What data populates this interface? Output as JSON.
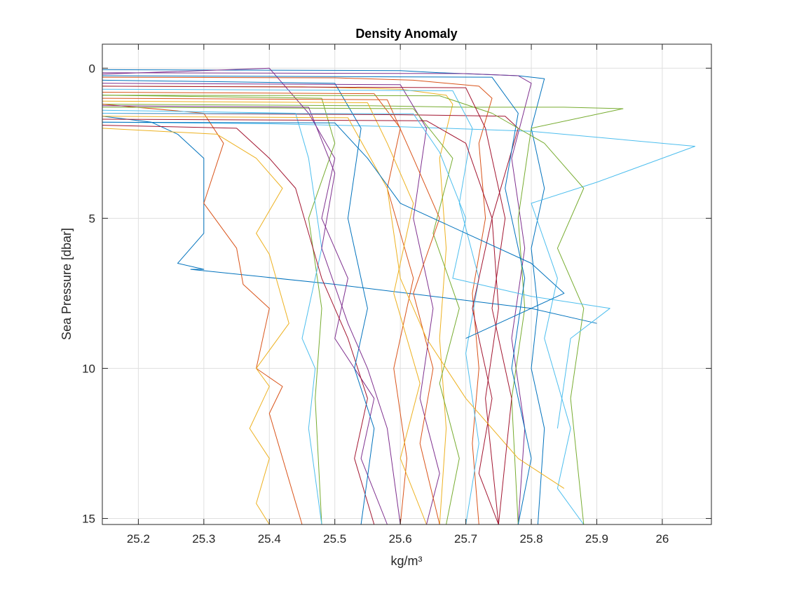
{
  "chart_data": {
    "type": "line",
    "title": "Density Anomaly",
    "xlabel": "kg/m³",
    "ylabel": "Sea Pressure [dbar]",
    "xlim": [
      25.145,
      26.075
    ],
    "ylim": [
      15.2,
      -0.8
    ],
    "y_reversed": true,
    "grid": true,
    "legend": "none",
    "xticks": [
      25.2,
      25.3,
      25.4,
      25.5,
      25.6,
      25.7,
      25.8,
      25.9,
      26.0
    ],
    "xtick_labels": [
      "25.2",
      "25.3",
      "25.4",
      "25.5",
      "25.6",
      "25.7",
      "25.8",
      "25.9",
      "26"
    ],
    "yticks": [
      0,
      5,
      10,
      15
    ],
    "ytick_labels": [
      "0",
      "5",
      "10",
      "15"
    ],
    "colors": [
      "#0072BD",
      "#D95319",
      "#EDB120",
      "#7E2F8E",
      "#77AC30",
      "#4DBEEE",
      "#A2142F"
    ],
    "series": [
      {
        "x": [
          25.14,
          25.6,
          25.66,
          25.78,
          25.82,
          25.8,
          25.82,
          25.8,
          25.81,
          25.8,
          25.82,
          25.81
        ],
        "y": [
          0.05,
          0.08,
          0.15,
          0.25,
          0.35,
          2.0,
          4.0,
          6.0,
          8.0,
          10.0,
          12.0,
          15.2
        ]
      },
      {
        "x": [
          25.14,
          25.5,
          25.62,
          25.72,
          25.74,
          25.72,
          25.73,
          25.71,
          25.72,
          25.71,
          25.72
        ],
        "y": [
          0.3,
          0.32,
          0.4,
          0.6,
          1.0,
          2.5,
          5.0,
          7.5,
          10.0,
          12.5,
          15.2
        ]
      },
      {
        "x": [
          25.14,
          25.45,
          25.6,
          25.67,
          25.68,
          25.66,
          25.67,
          25.66,
          25.67,
          25.66
        ],
        "y": [
          0.6,
          0.62,
          0.7,
          0.9,
          1.2,
          3.0,
          6.0,
          9.0,
          12.0,
          15.2
        ]
      },
      {
        "x": [
          25.14,
          25.7,
          25.78,
          25.8,
          25.77,
          25.79,
          25.77,
          25.79,
          25.78
        ],
        "y": [
          0.15,
          0.18,
          0.25,
          0.5,
          3.0,
          6.0,
          9.0,
          12.0,
          15.2
        ]
      },
      {
        "x": [
          25.14,
          25.55,
          25.7,
          25.85,
          25.94,
          25.8,
          25.78,
          25.79,
          25.77,
          25.78
        ],
        "y": [
          1.2,
          1.25,
          1.3,
          1.3,
          1.35,
          2.0,
          5.0,
          8.0,
          11.0,
          15.2
        ]
      },
      {
        "x": [
          25.14,
          25.4,
          25.6,
          25.8,
          26.05,
          25.9,
          25.8,
          25.84,
          25.82,
          25.86,
          25.84,
          25.88
        ],
        "y": [
          1.8,
          1.85,
          1.95,
          2.1,
          2.6,
          3.8,
          4.5,
          7.0,
          9.0,
          12.0,
          14.0,
          15.2
        ]
      },
      {
        "x": [
          25.14,
          25.6,
          25.76,
          25.78,
          25.74,
          25.75,
          25.73,
          25.75
        ],
        "y": [
          1.5,
          1.55,
          1.6,
          2.0,
          5.0,
          8.0,
          11.0,
          15.2
        ]
      },
      {
        "x": [
          25.14,
          25.22,
          25.26,
          25.3,
          25.3,
          25.26,
          25.3,
          25.28,
          25.5,
          25.8,
          25.9
        ],
        "y": [
          1.6,
          1.8,
          2.2,
          3.0,
          5.5,
          6.5,
          6.7,
          6.7,
          7.2,
          8.0,
          8.5
        ]
      },
      {
        "x": [
          25.14,
          25.3,
          25.33,
          25.3,
          25.35,
          25.36,
          25.4,
          25.38,
          25.42,
          25.4,
          25.45
        ],
        "y": [
          1.2,
          1.5,
          2.5,
          4.5,
          6.0,
          7.2,
          8.0,
          10.0,
          10.6,
          11.5,
          15.2
        ]
      },
      {
        "x": [
          25.14,
          25.32,
          25.38,
          25.42,
          25.38,
          25.4,
          25.43,
          25.38,
          25.4,
          25.37,
          25.4,
          25.38,
          25.4
        ],
        "y": [
          2.0,
          2.2,
          3.0,
          4.0,
          5.5,
          6.2,
          8.5,
          10.0,
          10.6,
          12.0,
          13.0,
          14.5,
          15.2
        ]
      },
      {
        "x": [
          25.14,
          25.4,
          25.42,
          25.46,
          25.5,
          25.48,
          25.52,
          25.5,
          25.56,
          25.54,
          25.58
        ],
        "y": [
          0.2,
          0.0,
          0.5,
          1.5,
          3.0,
          5.0,
          7.0,
          9.0,
          11.0,
          13.0,
          15.2
        ]
      },
      {
        "x": [
          25.14,
          25.48,
          25.5,
          25.46,
          25.48,
          25.47,
          25.48
        ],
        "y": [
          0.9,
          1.0,
          2.5,
          5.0,
          8.0,
          11.0,
          15.2
        ]
      },
      {
        "x": [
          25.14,
          25.44,
          25.46,
          25.48,
          25.45,
          25.47,
          25.46,
          25.48
        ],
        "y": [
          1.4,
          1.5,
          3.0,
          6.0,
          9.0,
          10.0,
          12.0,
          15.2
        ]
      },
      {
        "x": [
          25.14,
          25.35,
          25.4,
          25.44,
          25.48,
          25.52,
          25.55,
          25.53,
          25.56
        ],
        "y": [
          1.9,
          2.0,
          3.0,
          4.0,
          7.0,
          9.0,
          11.0,
          13.0,
          15.2
        ]
      },
      {
        "x": [
          25.14,
          25.5,
          25.54,
          25.52,
          25.55,
          25.53,
          25.56,
          25.54
        ],
        "y": [
          0.4,
          0.5,
          2.0,
          5.0,
          8.0,
          10.0,
          12.0,
          15.2
        ]
      },
      {
        "x": [
          25.14,
          25.56,
          25.6,
          25.58,
          25.62,
          25.59,
          25.61,
          25.6
        ],
        "y": [
          0.8,
          0.85,
          2.0,
          4.0,
          7.0,
          10.0,
          13.0,
          15.2
        ]
      },
      {
        "x": [
          25.14,
          25.55,
          25.58,
          25.62,
          25.59,
          25.63,
          25.6,
          25.64
        ],
        "y": [
          1.1,
          1.15,
          2.5,
          4.5,
          7.5,
          10.5,
          13.0,
          15.2
        ]
      },
      {
        "x": [
          25.14,
          25.6,
          25.64,
          25.62,
          25.65,
          25.63,
          25.66,
          25.64
        ],
        "y": [
          0.5,
          0.55,
          2.0,
          5.0,
          8.0,
          11.0,
          13.5,
          15.2
        ]
      },
      {
        "x": [
          25.14,
          25.62,
          25.68,
          25.65,
          25.69,
          25.66,
          25.69,
          25.67
        ],
        "y": [
          1.3,
          1.35,
          3.0,
          5.5,
          8.0,
          10.5,
          13.0,
          15.2
        ]
      },
      {
        "x": [
          25.14,
          25.68,
          25.71,
          25.69,
          25.72,
          25.7,
          25.72,
          25.7
        ],
        "y": [
          0.7,
          0.75,
          2.0,
          4.5,
          7.0,
          9.5,
          12.5,
          15.2
        ]
      },
      {
        "x": [
          25.14,
          25.64,
          25.7,
          25.74,
          25.71,
          25.74,
          25.72,
          25.75
        ],
        "y": [
          1.7,
          1.75,
          2.5,
          5.0,
          8.0,
          11.0,
          13.5,
          15.2
        ]
      },
      {
        "x": [
          25.14,
          25.74,
          25.78,
          25.76,
          25.79,
          25.77,
          25.8,
          25.78
        ],
        "y": [
          0.25,
          0.3,
          1.5,
          4.0,
          7.0,
          10.0,
          13.0,
          15.2
        ]
      },
      {
        "x": [
          25.14,
          25.58,
          25.62,
          25.66,
          25.62,
          25.65,
          25.63,
          25.66
        ],
        "y": [
          1.0,
          1.05,
          3.0,
          5.0,
          7.5,
          10.0,
          12.5,
          15.2
        ]
      },
      {
        "x": [
          25.14,
          25.52,
          25.58,
          25.6,
          25.64,
          25.7,
          25.78,
          25.85
        ],
        "y": [
          1.6,
          1.65,
          4.0,
          7.0,
          9.0,
          11.0,
          13.0,
          14.0
        ]
      },
      {
        "x": [
          25.14,
          25.46,
          25.5,
          25.48,
          25.52,
          25.55,
          25.58,
          25.6
        ],
        "y": [
          1.25,
          1.3,
          3.5,
          6.0,
          8.5,
          10.0,
          12.0,
          15.2
        ]
      },
      {
        "x": [
          25.14,
          25.66,
          25.74,
          25.82,
          25.88,
          25.84,
          25.88,
          25.86,
          25.88
        ],
        "y": [
          0.9,
          0.92,
          1.5,
          2.5,
          4.0,
          6.0,
          8.0,
          11.0,
          15.2
        ]
      },
      {
        "x": [
          25.14,
          25.62,
          25.66,
          25.7,
          25.68,
          25.8,
          25.92,
          25.86,
          25.84
        ],
        "y": [
          1.5,
          1.52,
          2.8,
          5.0,
          7.0,
          7.6,
          8.0,
          9.0,
          12.0
        ]
      },
      {
        "x": [
          25.14,
          25.7,
          25.73,
          25.76,
          25.74,
          25.77,
          25.75
        ],
        "y": [
          0.6,
          0.65,
          2.0,
          5.0,
          8.0,
          11.0,
          15.2
        ]
      },
      {
        "x": [
          25.14,
          25.5,
          25.55,
          25.6,
          25.7,
          25.8,
          25.85,
          25.75,
          25.7
        ],
        "y": [
          1.8,
          1.82,
          3.0,
          4.5,
          5.5,
          6.5,
          7.5,
          8.5,
          9.0
        ]
      }
    ]
  }
}
